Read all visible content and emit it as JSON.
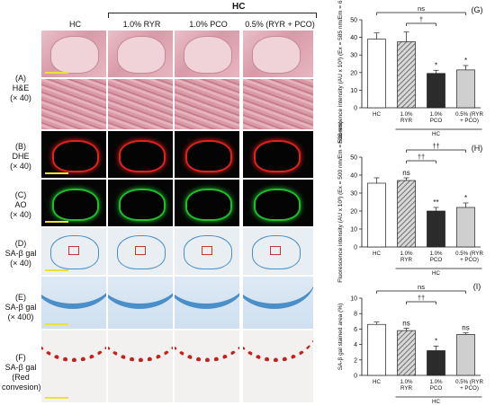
{
  "figure": {
    "top_label": "HC",
    "columns": [
      "HC",
      "1.0% RYR",
      "1.0% PCO",
      "0.5% (RYR + PCO)"
    ],
    "rows": [
      {
        "id": "A",
        "lines": [
          "(A)",
          "H&E",
          "(× 40)"
        ]
      },
      {
        "id": "B",
        "lines": [
          "(B)",
          "DHE",
          "(× 40)"
        ]
      },
      {
        "id": "C",
        "lines": [
          "(C)",
          "AO",
          "(× 40)"
        ]
      },
      {
        "id": "D",
        "lines": [
          "(D)",
          "SA-β gal",
          "(× 40)"
        ]
      },
      {
        "id": "E",
        "lines": [
          "(E)",
          "SA-β gal",
          "(× 400)"
        ]
      },
      {
        "id": "F",
        "lines": [
          "(F)",
          "SA-β gal",
          "(Red",
          "convesion)"
        ]
      }
    ]
  },
  "colors": {
    "bar_hc": "#ffffff",
    "bar_ryr": "#9a9a9a",
    "bar_pco": "#2b2b2b",
    "bar_mix": "#cfcfcf",
    "dhe_red": "#e0211c",
    "ao_green": "#1fbf2a",
    "sa_blue": "#4b8fc9",
    "scale_yellow": "#e8e23a"
  },
  "chart_data": [
    {
      "panel": "(G)",
      "type": "bar",
      "categories": [
        "HC",
        "1.0% RYR",
        "1.0% PCO",
        "0.5% (RYR + PCO)"
      ],
      "group_label": "HC",
      "ylabel": "Fluorescence intensity (AU x 10³) (Ex = 585 nm/Em = 615nm)",
      "ylim": [
        0,
        50
      ],
      "yticks": [
        "0",
        "10",
        "20",
        "30",
        "40",
        "50"
      ],
      "values": [
        39,
        37.5,
        19.5,
        21.5
      ],
      "errors": [
        3.5,
        5.5,
        1.8,
        2.5
      ],
      "marks": [
        "",
        "",
        "*",
        "*"
      ],
      "brackets": [
        {
          "from": 0,
          "to": 3,
          "label": "ns"
        },
        {
          "from": 1,
          "to": 2,
          "label": "†"
        }
      ]
    },
    {
      "panel": "(H)",
      "type": "bar",
      "categories": [
        "HC",
        "1.0% RYR",
        "1.0% PCO",
        "0.5% (RYR + PCO)"
      ],
      "group_label": "HC",
      "ylabel": "Fluorescence intensity (AU x 10³) (Ex = 500 nm/Em = 535 nm)",
      "ylim": [
        0,
        50
      ],
      "yticks": [
        "0",
        "10",
        "20",
        "30",
        "40",
        "50"
      ],
      "values": [
        35.5,
        37,
        20,
        22
      ],
      "errors": [
        3,
        1.5,
        2,
        2.5
      ],
      "marks": [
        "",
        "ns",
        "**",
        "*"
      ],
      "brackets": [
        {
          "from": 1,
          "to": 3,
          "label": "††"
        },
        {
          "from": 1,
          "to": 2,
          "label": "††"
        }
      ]
    },
    {
      "panel": "(I)",
      "type": "bar",
      "categories": [
        "HC",
        "1.0% RYR",
        "1.0% PCO",
        "0.5% (RYR + PCO)"
      ],
      "group_label": "HC",
      "ylabel": "SA-β gal stained area (%)",
      "ylim": [
        0,
        10
      ],
      "yticks": [
        "0",
        "2",
        "4",
        "6",
        "8",
        "10"
      ],
      "values": [
        6.6,
        5.8,
        3.2,
        5.3
      ],
      "errors": [
        0.3,
        0.3,
        0.6,
        0.2
      ],
      "marks": [
        "",
        "ns",
        "*",
        "ns"
      ],
      "brackets": [
        {
          "from": 0,
          "to": 3,
          "label": "ns"
        },
        {
          "from": 1,
          "to": 2,
          "label": "††"
        }
      ]
    }
  ]
}
